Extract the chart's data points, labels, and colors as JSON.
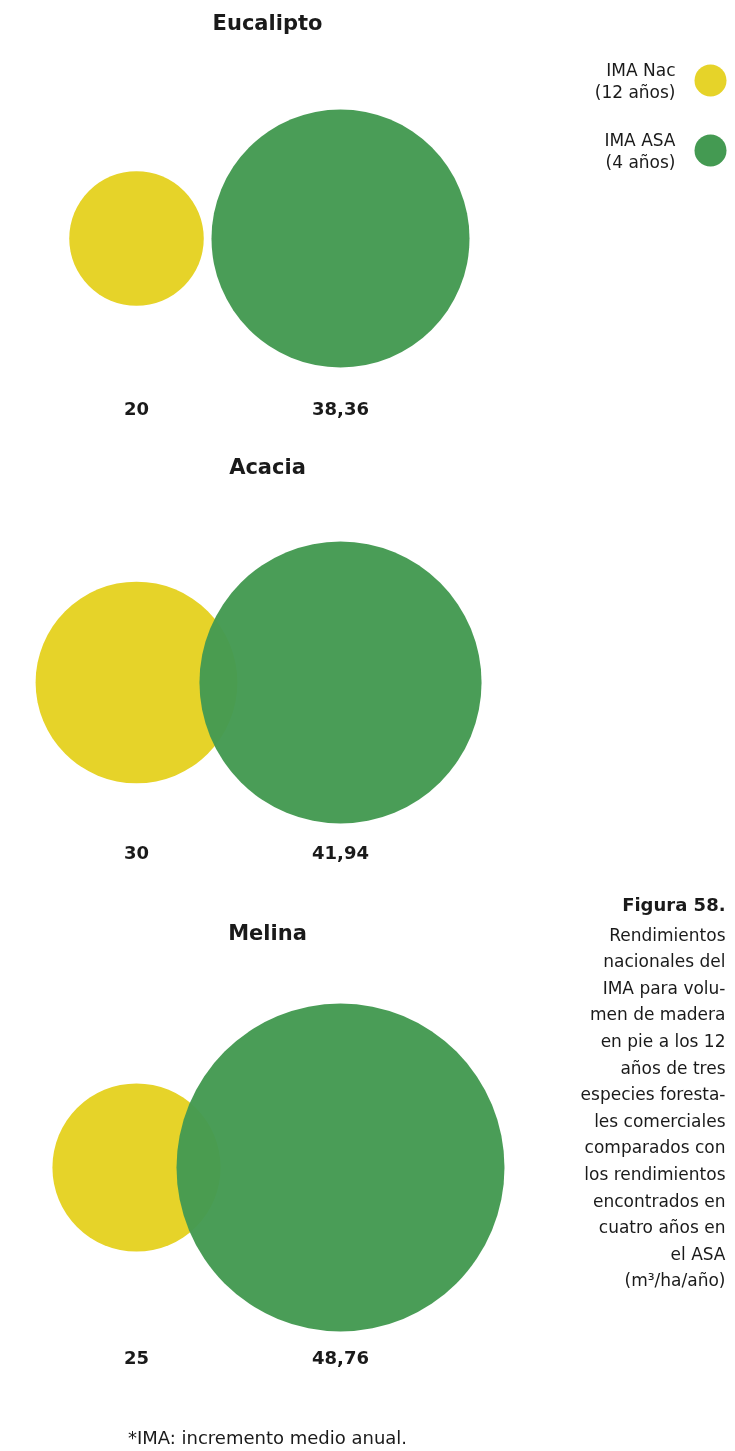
{
  "chart_data": [
    {
      "type": "other",
      "title": "Eucalipto",
      "categories": [
        null,
        null
      ],
      "values": [
        20,
        38.36
      ],
      "colors": [
        "#e6d329",
        "#449a52"
      ],
      "value_labels": [
        "20",
        "38,36"
      ],
      "annotations": [
        "IMA Nac\n(12 años)",
        "IMA ASA\n(4 años)"
      ]
    },
    {
      "type": "other",
      "title": "Acacia",
      "categories": [
        null,
        null
      ],
      "values": [
        30,
        41.94
      ],
      "colors": [
        "#e6d329",
        "#449a52"
      ],
      "value_labels": [
        "30",
        "41,94"
      ]
    },
    {
      "type": "other",
      "title": "Melina",
      "categories": [
        null,
        null
      ],
      "values": [
        25,
        48.76
      ],
      "colors": [
        "#e6d329",
        "#449a52"
      ],
      "value_labels": [
        "25",
        "48,76"
      ],
      "annotations": [
        "Figura 58.",
        "Rendimientos\nnacionales del\nIMA para volu-\nmen de madera\nen pie a los 12\naños de tres\nespecies foresta-\nles comerciales\ncomparados con\nlos rendimientos\nencontrados en\ncuatro años en\nel ASA\n(m³/ha/año)",
        "*IMA: incremento medio anual."
      ]
    }
  ]
}
